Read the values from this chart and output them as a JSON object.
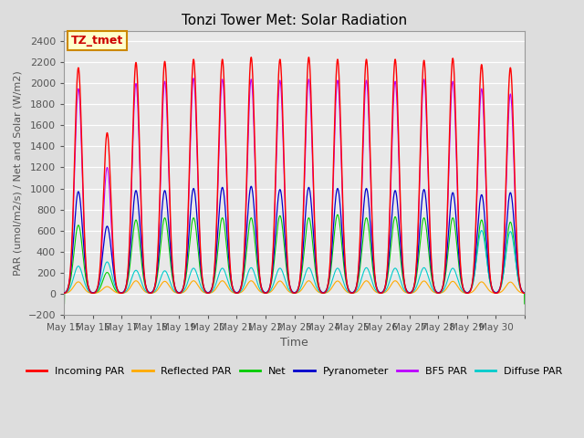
{
  "title": "Tonzi Tower Met: Solar Radiation",
  "ylabel": "PAR (umol/m2/s) / Net and Solar (W/m2)",
  "xlabel": "Time",
  "ylim": [
    -200,
    2500
  ],
  "yticks": [
    -200,
    0,
    200,
    400,
    600,
    800,
    1000,
    1200,
    1400,
    1600,
    1800,
    2000,
    2200,
    2400
  ],
  "bg_color": "#dddddd",
  "plot_bg_color": "#e8e8e8",
  "n_days": 16,
  "points_per_day": 288,
  "incoming_par_peaks": [
    2150,
    1530,
    2200,
    2210,
    2230,
    2230,
    2250,
    2230,
    2250,
    2230,
    2230,
    2230,
    2220,
    2240,
    2180,
    2150
  ],
  "pyranometer_peaks": [
    970,
    640,
    980,
    980,
    1000,
    1010,
    1020,
    990,
    1010,
    1000,
    1000,
    980,
    990,
    960,
    940,
    960
  ],
  "bf5_peaks": [
    1950,
    1200,
    2000,
    2020,
    2050,
    2040,
    2040,
    2030,
    2040,
    2030,
    2030,
    2020,
    2040,
    2020,
    1950,
    1900
  ],
  "net_peaks": [
    650,
    200,
    700,
    720,
    720,
    720,
    720,
    740,
    720,
    750,
    720,
    730,
    720,
    720,
    700,
    680
  ],
  "reflected_peaks": [
    110,
    65,
    120,
    115,
    120,
    120,
    120,
    118,
    120,
    118,
    120,
    120,
    118,
    115,
    110,
    108
  ],
  "diffuse_peaks": [
    260,
    300,
    220,
    215,
    240,
    240,
    245,
    240,
    245,
    240,
    245,
    240,
    245,
    240,
    600,
    590
  ],
  "colors": {
    "incoming_par": "#ff0000",
    "reflected_par": "#ffaa00",
    "net": "#00cc00",
    "pyranometer": "#0000cc",
    "bf5_par": "#bb00ff",
    "diffuse_par": "#00cccc"
  },
  "tz_label": "TZ_tmet",
  "x_tick_labels": [
    "May 15",
    "May 16",
    "May 17",
    "May 18",
    "May 19",
    "May 20",
    "May 21",
    "May 22",
    "May 23",
    "May 24",
    "May 25",
    "May 26",
    "May 27",
    "May 28",
    "May 29",
    "May 30"
  ]
}
